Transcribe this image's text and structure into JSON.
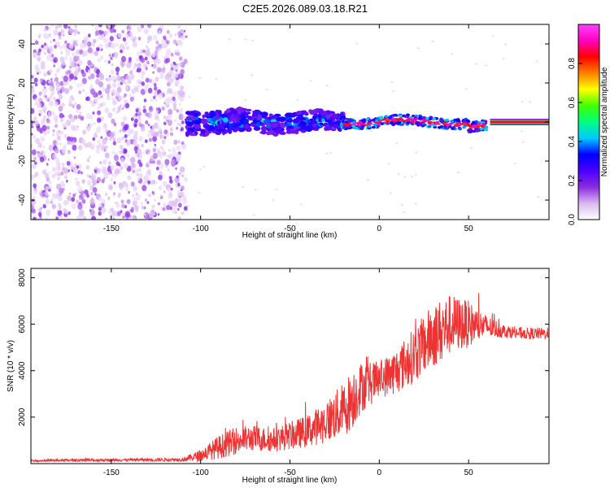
{
  "title": "C2E5.2026.089.03.18.R21",
  "chart_data": [
    {
      "id": "spectrogram",
      "type": "heatmap",
      "xlabel": "Height of straight line (km)",
      "ylabel": "Frequency (Hz)",
      "xlim": [
        -195,
        95
      ],
      "ylim": [
        -50,
        50
      ],
      "xticks": [
        -150,
        -100,
        -50,
        0,
        50
      ],
      "yticks": [
        -40,
        -20,
        0,
        20,
        40
      ],
      "description_segments": [
        {
          "x_from": -195,
          "x_to": -108,
          "regime": "broadband noise, low amplitude"
        },
        {
          "x_from": -108,
          "x_to": -20,
          "regime": "line near 0 Hz, width ~ +/-6 Hz, amplitude 0.2-0.5"
        },
        {
          "x_from": -20,
          "x_to": 60,
          "regime": "narrow line near 0 Hz, amplitude up to ~0.9"
        },
        {
          "x_from": 60,
          "x_to": 95,
          "regime": "clean line at 0 Hz, amplitude ~0.95"
        }
      ],
      "colorbar": {
        "label": "Normalized spectral amplitude",
        "range": [
          0,
          1
        ],
        "ticks": [
          "0.0",
          "0.2",
          "0.4",
          "0.6",
          "0.8"
        ],
        "tick_values": [
          0.0,
          0.2,
          0.4,
          0.6,
          0.8
        ],
        "colors": [
          "#ffffff",
          "#d9b8f0",
          "#8a2be2",
          "#4b00ff",
          "#0000ff",
          "#00c8ff",
          "#00ff80",
          "#40ff00",
          "#ffff00",
          "#ff8000",
          "#ff0000",
          "#ff00c0",
          "#ff40ff"
        ]
      }
    },
    {
      "id": "snr",
      "type": "line",
      "xlabel": "Height of straight line (km)",
      "ylabel": "SNR (10 * v/v)",
      "xlim": [
        -195,
        95
      ],
      "ylim": [
        0,
        8400
      ],
      "xticks": [
        -150,
        -100,
        -50,
        0,
        50
      ],
      "yticks": [
        2000,
        4000,
        6000,
        8000
      ],
      "line_color": "#ee3333",
      "series": [
        {
          "name": "SNR",
          "x": [
            -195,
            -180,
            -160,
            -140,
            -120,
            -110,
            -100,
            -90,
            -80,
            -70,
            -60,
            -50,
            -40,
            -30,
            -20,
            -15,
            -10,
            0,
            10,
            20,
            30,
            40,
            50,
            60,
            70,
            80,
            90,
            95
          ],
          "y": [
            120,
            140,
            150,
            160,
            170,
            180,
            350,
            700,
            1000,
            1100,
            1000,
            1200,
            1400,
            1800,
            2300,
            2800,
            3300,
            3600,
            4000,
            4700,
            5500,
            6000,
            6000,
            5900,
            5700,
            5600,
            5600,
            5600
          ],
          "noise": [
            40,
            50,
            60,
            60,
            70,
            80,
            250,
            500,
            600,
            550,
            500,
            600,
            700,
            900,
            1200,
            1300,
            1100,
            800,
            1000,
            1200,
            1400,
            1300,
            1000,
            500,
            300,
            250,
            250,
            250
          ]
        }
      ]
    }
  ]
}
